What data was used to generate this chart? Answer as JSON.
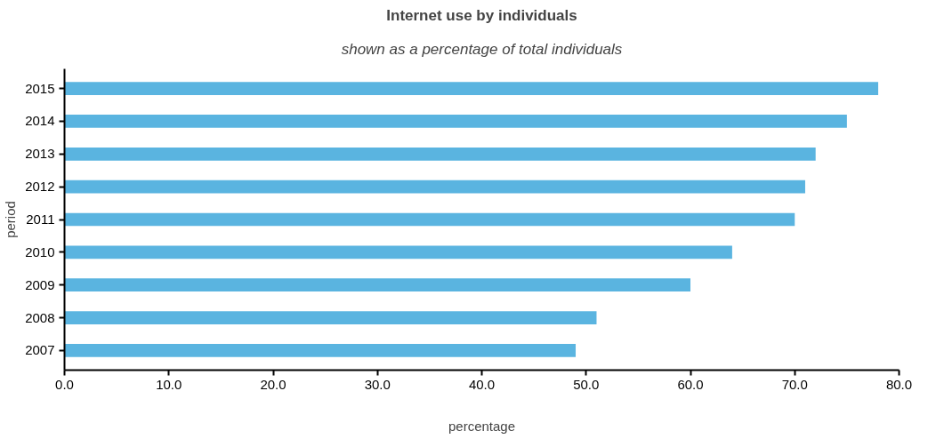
{
  "chart_data": {
    "type": "bar",
    "orientation": "horizontal",
    "title": "Internet use by individuals",
    "subtitle": "shown as a percentage of total individuals",
    "xlabel": "percentage",
    "ylabel": "period",
    "categories": [
      "2015",
      "2014",
      "2013",
      "2012",
      "2011",
      "2010",
      "2009",
      "2008",
      "2007"
    ],
    "values": [
      78,
      75,
      72,
      71,
      70,
      64,
      60,
      51,
      49
    ],
    "color": "#5ab4e0",
    "xlim": [
      0,
      80
    ],
    "xticks": [
      {
        "value": 0,
        "label": "0.0"
      },
      {
        "value": 10,
        "label": "10.0"
      },
      {
        "value": 20,
        "label": "20.0"
      },
      {
        "value": 30,
        "label": "30.0"
      },
      {
        "value": 40,
        "label": "40.0"
      },
      {
        "value": 50,
        "label": "50.0"
      },
      {
        "value": 60,
        "label": "60.0"
      },
      {
        "value": 70,
        "label": "70.0"
      },
      {
        "value": 80,
        "label": "80.0"
      }
    ],
    "grid": false
  }
}
